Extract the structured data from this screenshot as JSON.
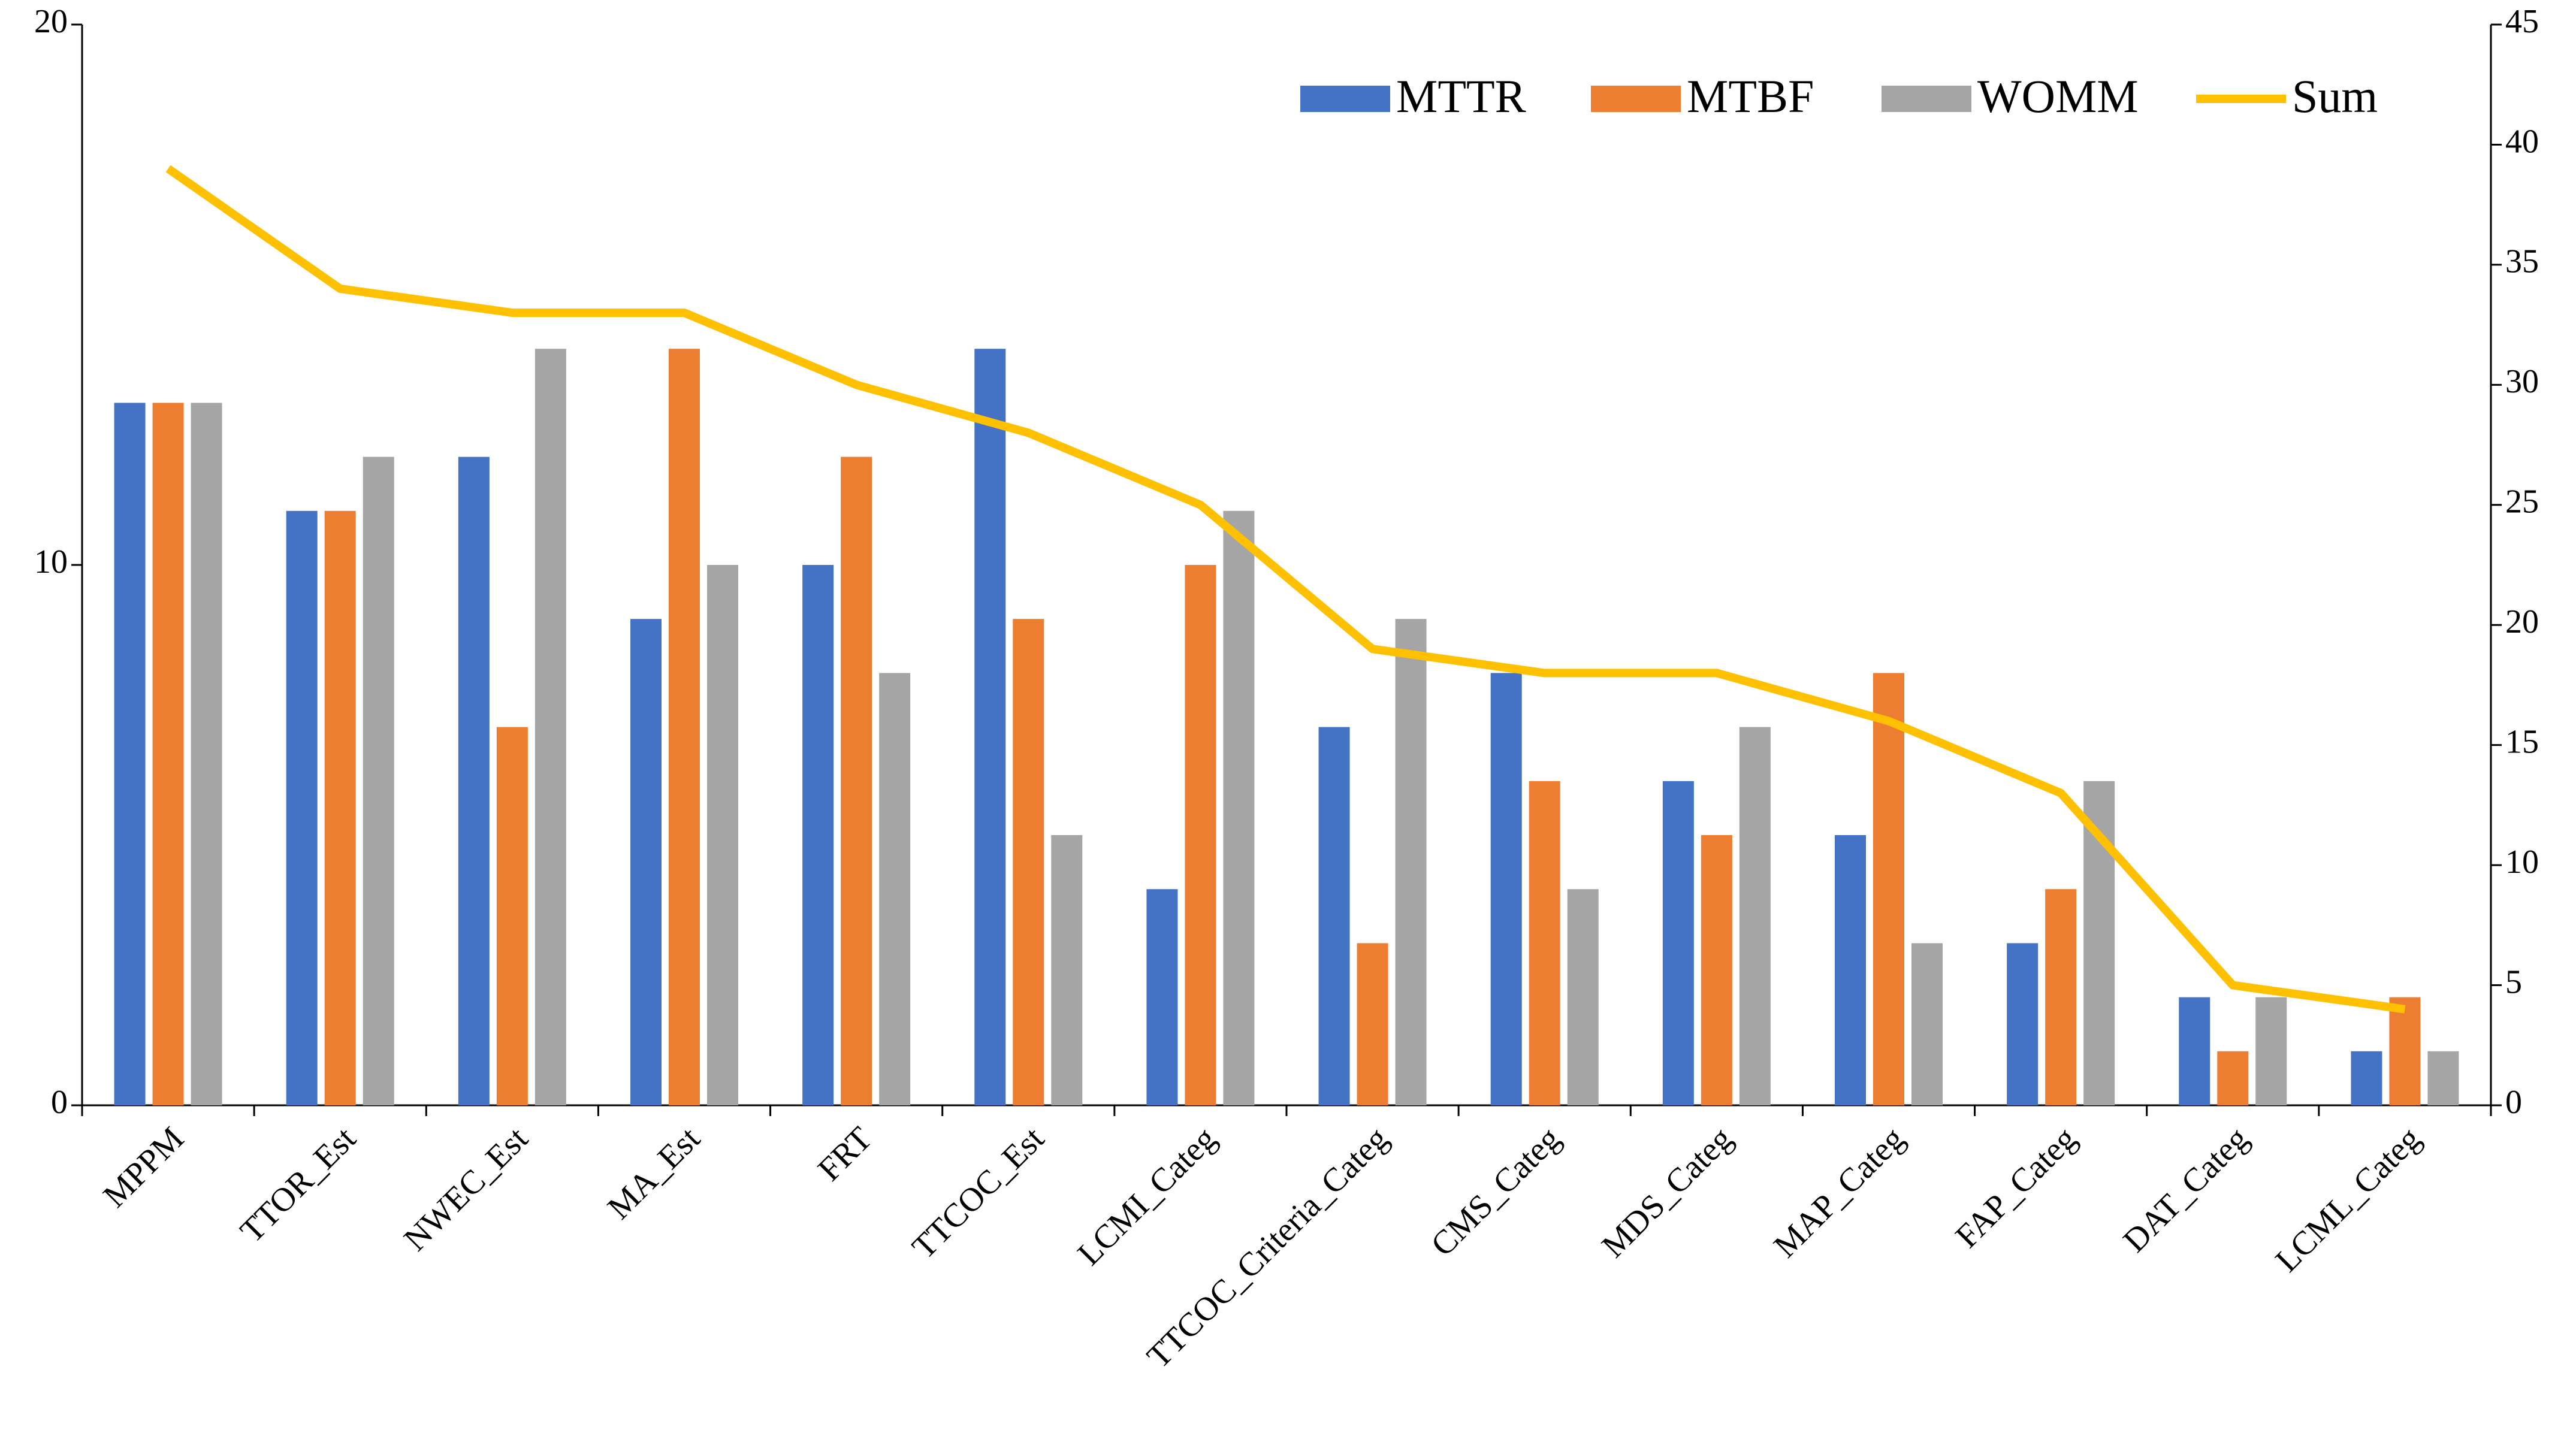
{
  "chart_data": {
    "type": "bar",
    "categories": [
      "MPPM",
      "TTOR_Est",
      "NWEC_Est",
      "MA_Est",
      "FRT",
      "TTCOC_Est",
      "LCMI_Categ",
      "TTCOC_Criteria_Categ",
      "CMS_Categ",
      "MDS_Categ",
      "MAP_Categ",
      "FAP_Categ",
      "DAT_Categ",
      "LCML_Categ"
    ],
    "series": [
      {
        "name": "MTTR",
        "color": "#4472c4",
        "values": [
          13,
          11,
          12,
          9,
          10,
          14,
          4,
          7,
          8,
          6,
          5,
          3,
          2,
          1
        ]
      },
      {
        "name": "MTBF",
        "color": "#ed7d31",
        "values": [
          13,
          11,
          7,
          14,
          12,
          9,
          10,
          3,
          6,
          5,
          8,
          4,
          1,
          2
        ]
      },
      {
        "name": "WOMM",
        "color": "#a5a5a5",
        "values": [
          13,
          12,
          14,
          10,
          8,
          5,
          11,
          9,
          4,
          7,
          3,
          6,
          2,
          1
        ]
      },
      {
        "name": "Sum",
        "color": "#ffc000",
        "type": "line",
        "axis": "y2",
        "values": [
          39,
          34,
          33,
          33,
          30,
          28,
          25,
          19,
          18,
          18,
          16,
          13,
          5,
          4
        ]
      }
    ],
    "ylim": [
      0,
      20
    ],
    "yticks": [
      0,
      10,
      20
    ],
    "y2lim": [
      0,
      45
    ],
    "y2ticks": [
      0,
      5,
      10,
      15,
      20,
      25,
      30,
      35,
      40,
      45
    ],
    "legend": "top-right"
  }
}
